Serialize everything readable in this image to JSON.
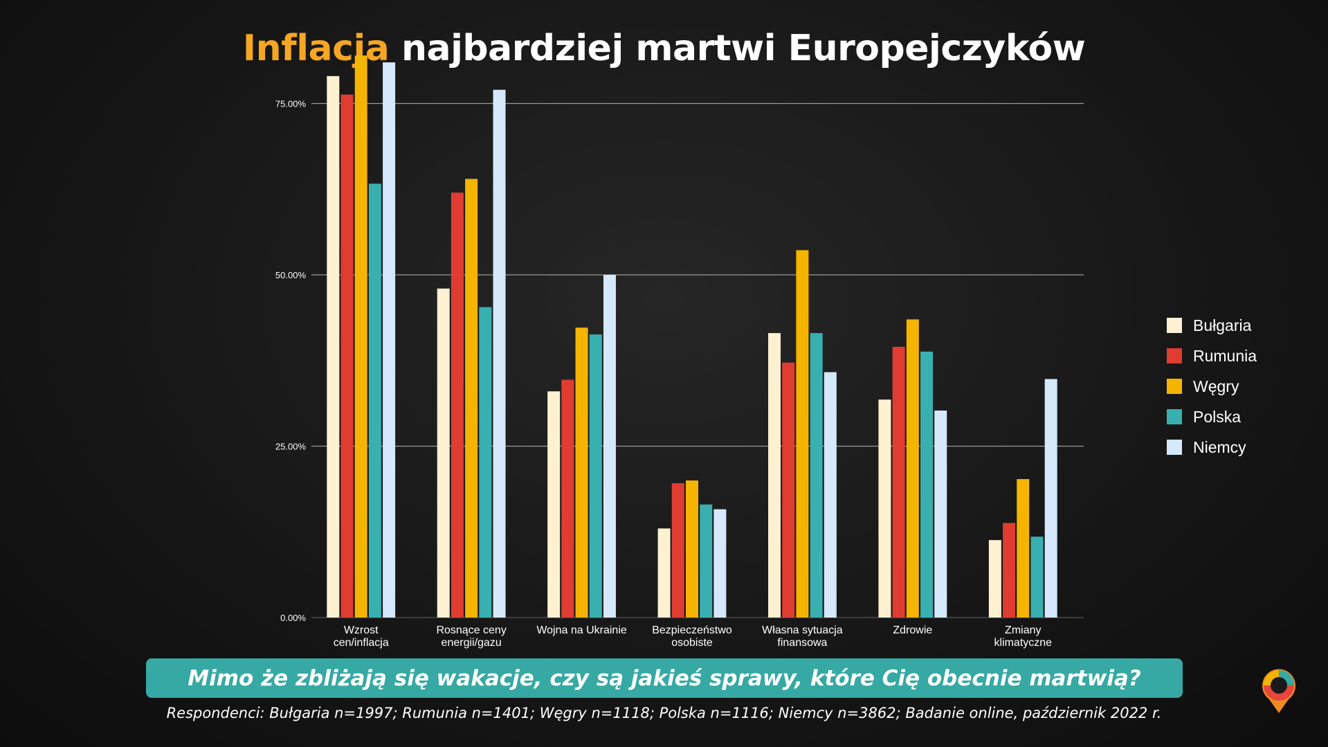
{
  "title": {
    "accent": "Inflacja",
    "rest": " najbardziej martwi Europejczyków",
    "accent_color": "#f5a623"
  },
  "question": "Mimo że zbliżają się wakacje, czy są jakieś sprawy, które Cię obecnie martwią?",
  "footnote": "Respondenci: Bułgaria n=1997; Rumunia n=1401; Węgry n=1118; Polska n=1116; Niemcy n=3862; Badanie online, październik 2022 r.",
  "logo": {
    "icon": "map-pin-logo-icon"
  },
  "chart_data": {
    "type": "bar",
    "title": "Inflacja najbardziej martwi Europejczyków",
    "xlabel": "",
    "ylabel": "",
    "ylim": [
      0,
      0.8
    ],
    "yticks": [
      {
        "value": 0,
        "label": "0.00%"
      },
      {
        "value": 0.25,
        "label": "25.00%"
      },
      {
        "value": 0.5,
        "label": "50.00%"
      },
      {
        "value": 0.75,
        "label": "75.00%"
      }
    ],
    "grid": true,
    "legend_position": "right",
    "categories": [
      [
        "Wzrost",
        "cen/inflacja"
      ],
      [
        "Rosnące ceny",
        "energii/gazu"
      ],
      [
        "Wojna na Ukrainie"
      ],
      [
        "Bezpieczeństwo",
        "osobiste"
      ],
      [
        "Własna sytuacja",
        "finansowa"
      ],
      [
        "Zdrowie"
      ],
      [
        "Zmiany",
        "klimatyczne"
      ]
    ],
    "series": [
      {
        "name": "Bułgaria",
        "color": "#fdf1d2",
        "values": [
          0.79,
          0.48,
          0.33,
          0.13,
          0.415,
          0.318,
          0.113
        ]
      },
      {
        "name": "Rumunia",
        "color": "#e03c31",
        "values": [
          0.763,
          0.62,
          0.347,
          0.196,
          0.372,
          0.395,
          0.138
        ]
      },
      {
        "name": "Węgry",
        "color": "#f5b400",
        "values": [
          0.82,
          0.64,
          0.423,
          0.2,
          0.536,
          0.435,
          0.202
        ]
      },
      {
        "name": "Polska",
        "color": "#38b0b0",
        "values": [
          0.633,
          0.453,
          0.413,
          0.165,
          0.415,
          0.388,
          0.118
        ]
      },
      {
        "name": "Niemcy",
        "color": "#d6e8fb",
        "values": [
          0.81,
          0.77,
          0.5,
          0.158,
          0.358,
          0.302,
          0.348
        ]
      }
    ]
  }
}
